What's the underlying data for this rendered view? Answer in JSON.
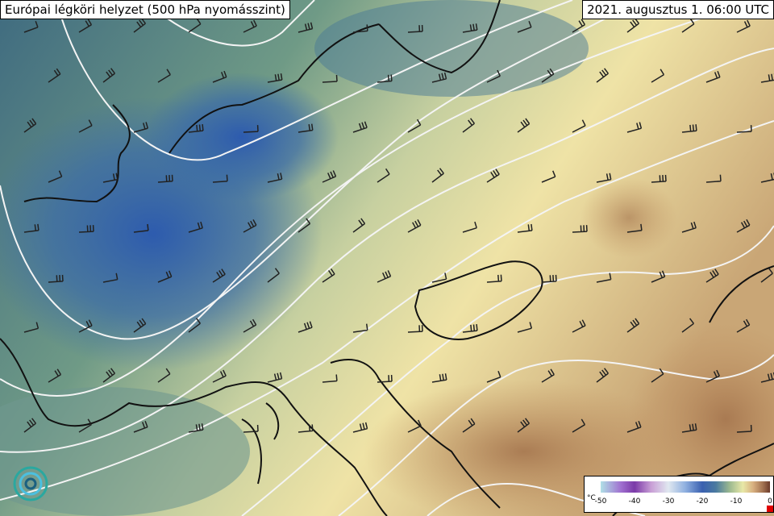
{
  "header": {
    "title": "Európai légköri helyzet (500 hPa nyomásszint)",
    "date": "2021. augusztus 1. 06:00 UTC"
  },
  "legend": {
    "unit": "°C",
    "labels": [
      "-50",
      "-40",
      "-30",
      "-20",
      "-10",
      "0"
    ]
  }
}
